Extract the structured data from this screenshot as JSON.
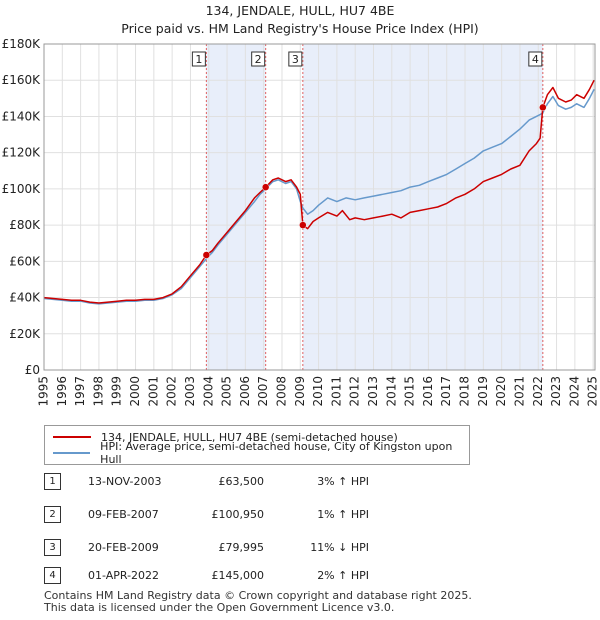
{
  "title_line1": "134, JENDALE, HULL, HU7 4BE",
  "title_line2": "Price paid vs. HM Land Registry's House Price Index (HPI)",
  "colors": {
    "property": "#cc0000",
    "hpi": "#6699cc",
    "shade": "#e8eefa",
    "grid": "#e0e0e0",
    "marker_line": "#e06060"
  },
  "legend": {
    "property_label": "134, JENDALE, HULL, HU7 4BE (semi-detached house)",
    "hpi_label": "HPI: Average price, semi-detached house, City of Kingston upon Hull"
  },
  "sales": [
    {
      "num": "1",
      "date": "13-NOV-2003",
      "price": "£63,500",
      "hpi": "3% ↑ HPI"
    },
    {
      "num": "2",
      "date": "09-FEB-2007",
      "price": "£100,950",
      "hpi": "1% ↑ HPI"
    },
    {
      "num": "3",
      "date": "20-FEB-2009",
      "price": "£79,995",
      "hpi": "11% ↓ HPI"
    },
    {
      "num": "4",
      "date": "01-APR-2022",
      "price": "£145,000",
      "hpi": "2% ↑ HPI"
    }
  ],
  "footer_line1": "Contains HM Land Registry data © Crown copyright and database right 2025.",
  "footer_line2": "This data is licensed under the Open Government Licence v3.0.",
  "chart_data": {
    "type": "line",
    "title": "134, JENDALE, HULL, HU7 4BE",
    "subtitle": "Price paid vs. HM Land Registry's House Price Index (HPI)",
    "xlabel": "",
    "ylabel": "",
    "xlim": [
      1995,
      2025.1
    ],
    "ylim": [
      0,
      180000
    ],
    "x_ticks": [
      1995,
      1996,
      1997,
      1998,
      1999,
      2000,
      2001,
      2002,
      2003,
      2004,
      2005,
      2006,
      2007,
      2008,
      2009,
      2010,
      2011,
      2012,
      2013,
      2014,
      2015,
      2016,
      2017,
      2018,
      2019,
      2020,
      2021,
      2022,
      2023,
      2024,
      2025
    ],
    "y_ticks": [
      0,
      20000,
      40000,
      60000,
      80000,
      100000,
      120000,
      140000,
      160000,
      180000
    ],
    "y_tick_labels": [
      "£0",
      "£20K",
      "£40K",
      "£60K",
      "£80K",
      "£100K",
      "£120K",
      "£140K",
      "£160K",
      "£180K"
    ],
    "shaded_ranges": [
      [
        2003.87,
        2007.11
      ],
      [
        2009.14,
        2022.25
      ]
    ],
    "sale_markers": [
      {
        "label": "1",
        "x": 2003.87,
        "y": 63500
      },
      {
        "label": "2",
        "x": 2007.11,
        "y": 100950
      },
      {
        "label": "3",
        "x": 2009.14,
        "y": 79995
      },
      {
        "label": "4",
        "x": 2022.25,
        "y": 145000
      }
    ],
    "series": [
      {
        "name": "134, JENDALE, HULL, HU7 4BE (semi-detached house)",
        "color": "#cc0000",
        "points": [
          [
            1995,
            40000
          ],
          [
            1995.5,
            39500
          ],
          [
            1996,
            39000
          ],
          [
            1996.5,
            38500
          ],
          [
            1997,
            38500
          ],
          [
            1997.5,
            37500
          ],
          [
            1998,
            37000
          ],
          [
            1998.5,
            37500
          ],
          [
            1999,
            38000
          ],
          [
            1999.5,
            38500
          ],
          [
            2000,
            38500
          ],
          [
            2000.5,
            39000
          ],
          [
            2001,
            39000
          ],
          [
            2001.5,
            40000
          ],
          [
            2002,
            42000
          ],
          [
            2002.5,
            46000
          ],
          [
            2003,
            52000
          ],
          [
            2003.5,
            58000
          ],
          [
            2003.87,
            63500
          ],
          [
            2004.2,
            66000
          ],
          [
            2004.5,
            70000
          ],
          [
            2005,
            76000
          ],
          [
            2005.5,
            82000
          ],
          [
            2006,
            88000
          ],
          [
            2006.5,
            95000
          ],
          [
            2006.8,
            98000
          ],
          [
            2007.11,
            100950
          ],
          [
            2007.5,
            105000
          ],
          [
            2007.8,
            106000
          ],
          [
            2008.2,
            104000
          ],
          [
            2008.5,
            105000
          ],
          [
            2008.8,
            101000
          ],
          [
            2009,
            97000
          ],
          [
            2009.14,
            79995
          ],
          [
            2009.4,
            78000
          ],
          [
            2009.7,
            82000
          ],
          [
            2010,
            84000
          ],
          [
            2010.5,
            87000
          ],
          [
            2011,
            85000
          ],
          [
            2011.3,
            88000
          ],
          [
            2011.7,
            83000
          ],
          [
            2012,
            84000
          ],
          [
            2012.5,
            83000
          ],
          [
            2013,
            84000
          ],
          [
            2013.5,
            85000
          ],
          [
            2014,
            86000
          ],
          [
            2014.5,
            84000
          ],
          [
            2015,
            87000
          ],
          [
            2015.5,
            88000
          ],
          [
            2016,
            89000
          ],
          [
            2016.5,
            90000
          ],
          [
            2017,
            92000
          ],
          [
            2017.5,
            95000
          ],
          [
            2018,
            97000
          ],
          [
            2018.5,
            100000
          ],
          [
            2019,
            104000
          ],
          [
            2019.5,
            106000
          ],
          [
            2020,
            108000
          ],
          [
            2020.5,
            111000
          ],
          [
            2021,
            113000
          ],
          [
            2021.5,
            121000
          ],
          [
            2021.9,
            125000
          ],
          [
            2022.1,
            128000
          ],
          [
            2022.25,
            145000
          ],
          [
            2022.5,
            152000
          ],
          [
            2022.8,
            156000
          ],
          [
            2023.1,
            150000
          ],
          [
            2023.5,
            148000
          ],
          [
            2023.8,
            149000
          ],
          [
            2024.1,
            152000
          ],
          [
            2024.5,
            150000
          ],
          [
            2024.8,
            155000
          ],
          [
            2025.05,
            160000
          ]
        ]
      },
      {
        "name": "HPI: Average price, semi-detached house, City of Kingston upon Hull",
        "color": "#6699cc",
        "points": [
          [
            1995,
            39500
          ],
          [
            1995.5,
            39000
          ],
          [
            1996,
            38500
          ],
          [
            1996.5,
            38000
          ],
          [
            1997,
            38000
          ],
          [
            1997.5,
            37000
          ],
          [
            1998,
            36500
          ],
          [
            1998.5,
            37000
          ],
          [
            1999,
            37500
          ],
          [
            1999.5,
            38000
          ],
          [
            2000,
            38000
          ],
          [
            2000.5,
            38500
          ],
          [
            2001,
            38500
          ],
          [
            2001.5,
            39500
          ],
          [
            2002,
            41500
          ],
          [
            2002.5,
            45000
          ],
          [
            2003,
            51000
          ],
          [
            2003.5,
            57000
          ],
          [
            2003.87,
            61500
          ],
          [
            2004.2,
            65000
          ],
          [
            2004.5,
            69000
          ],
          [
            2005,
            75000
          ],
          [
            2005.5,
            81000
          ],
          [
            2006,
            87000
          ],
          [
            2006.5,
            93000
          ],
          [
            2006.8,
            97000
          ],
          [
            2007.11,
            100000
          ],
          [
            2007.5,
            104000
          ],
          [
            2007.8,
            105000
          ],
          [
            2008.2,
            103000
          ],
          [
            2008.5,
            104000
          ],
          [
            2008.8,
            100000
          ],
          [
            2009,
            93000
          ],
          [
            2009.14,
            89500
          ],
          [
            2009.4,
            86000
          ],
          [
            2009.7,
            88000
          ],
          [
            2010,
            91000
          ],
          [
            2010.5,
            95000
          ],
          [
            2011,
            93000
          ],
          [
            2011.5,
            95000
          ],
          [
            2012,
            94000
          ],
          [
            2012.5,
            95000
          ],
          [
            2013,
            96000
          ],
          [
            2013.5,
            97000
          ],
          [
            2014,
            98000
          ],
          [
            2014.5,
            99000
          ],
          [
            2015,
            101000
          ],
          [
            2015.5,
            102000
          ],
          [
            2016,
            104000
          ],
          [
            2016.5,
            106000
          ],
          [
            2017,
            108000
          ],
          [
            2017.5,
            111000
          ],
          [
            2018,
            114000
          ],
          [
            2018.5,
            117000
          ],
          [
            2019,
            121000
          ],
          [
            2019.5,
            123000
          ],
          [
            2020,
            125000
          ],
          [
            2020.5,
            129000
          ],
          [
            2021,
            133000
          ],
          [
            2021.5,
            138000
          ],
          [
            2021.9,
            140000
          ],
          [
            2022.1,
            141000
          ],
          [
            2022.25,
            142000
          ],
          [
            2022.5,
            147000
          ],
          [
            2022.8,
            151000
          ],
          [
            2023.1,
            146000
          ],
          [
            2023.5,
            144000
          ],
          [
            2023.8,
            145000
          ],
          [
            2024.1,
            147000
          ],
          [
            2024.5,
            145000
          ],
          [
            2024.8,
            150000
          ],
          [
            2025.05,
            155000
          ]
        ]
      }
    ]
  }
}
